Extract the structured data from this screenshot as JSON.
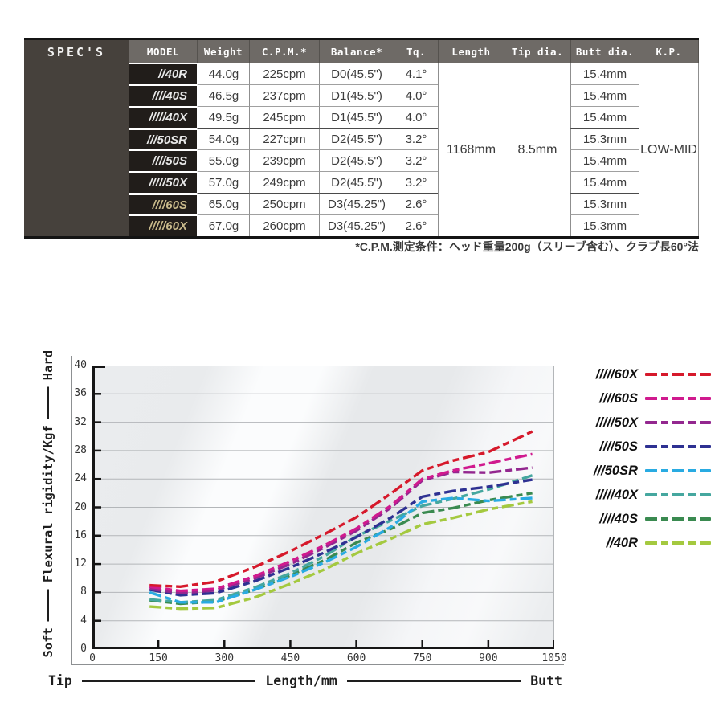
{
  "table": {
    "spec_label": "SPEC'S",
    "headers": [
      "MODEL",
      "Weight",
      "C.P.M.*",
      "Balance*",
      "Tq.",
      "Length",
      "Tip dia.",
      "Butt dia.",
      "K.P."
    ],
    "rows": [
      {
        "model": "//40R",
        "weight": "44.0g",
        "cpm": "225cpm",
        "balance": "D0(45.5\")",
        "tq": "4.1°",
        "butt": "15.4mm"
      },
      {
        "model": "////40S",
        "weight": "46.5g",
        "cpm": "237cpm",
        "balance": "D1(45.5\")",
        "tq": "4.0°",
        "butt": "15.4mm"
      },
      {
        "model": "/////40X",
        "weight": "49.5g",
        "cpm": "245cpm",
        "balance": "D1(45.5\")",
        "tq": "4.0°",
        "butt": "15.4mm"
      },
      {
        "model": "///50SR",
        "weight": "54.0g",
        "cpm": "227cpm",
        "balance": "D2(45.5\")",
        "tq": "3.2°",
        "butt": "15.3mm"
      },
      {
        "model": "////50S",
        "weight": "55.0g",
        "cpm": "239cpm",
        "balance": "D2(45.5\")",
        "tq": "3.2°",
        "butt": "15.4mm"
      },
      {
        "model": "/////50X",
        "weight": "57.0g",
        "cpm": "249cpm",
        "balance": "D2(45.5\")",
        "tq": "3.2°",
        "butt": "15.4mm"
      },
      {
        "model": "////60S",
        "weight": "65.0g",
        "cpm": "250cpm",
        "balance": "D3(45.25\")",
        "tq": "2.6°",
        "butt": "15.3mm"
      },
      {
        "model": "/////60X",
        "weight": "67.0g",
        "cpm": "260cpm",
        "balance": "D3(45.25\")",
        "tq": "2.6°",
        "butt": "15.3mm"
      }
    ],
    "merged": {
      "length": "1168mm",
      "tip_dia": "8.5mm",
      "kp": "LOW-MID"
    },
    "colors": {
      "header_bg": "#6e6a66",
      "spec_bg": "#46413c",
      "model_bg": "#211d1a",
      "gold_model_text": "#c9ba8b"
    }
  },
  "note": "*C.P.M.測定条件：ヘッド重量200g（スリーブ含む）、クラブ長60°法",
  "chart_data": {
    "type": "line",
    "line_style": "dashed",
    "xlabel": "Length/mm",
    "xlabel_left": "Tip",
    "xlabel_right": "Butt",
    "ylabel": "Flexural rigidity/Kgf",
    "ylabel_bottom": "Soft",
    "ylabel_top": "Hard",
    "xlim": [
      0,
      1050
    ],
    "ylim": [
      0,
      40
    ],
    "xticks": [
      0,
      150,
      300,
      450,
      600,
      750,
      900,
      1050
    ],
    "yticks": [
      0,
      4,
      8,
      12,
      16,
      20,
      24,
      28,
      32,
      36,
      40
    ],
    "grid": "horizontal",
    "legend_position": "right",
    "x": [
      130,
      200,
      280,
      370,
      450,
      530,
      600,
      680,
      750,
      820,
      900,
      1000
    ],
    "series": [
      {
        "name": "/////60X",
        "color": "#d6192b",
        "values": [
          9.0,
          8.8,
          9.5,
          11.6,
          13.8,
          16.3,
          18.6,
          22.0,
          25.2,
          26.6,
          27.8,
          30.7
        ]
      },
      {
        "name": "////60S",
        "color": "#d01a8e",
        "values": [
          8.8,
          8.2,
          8.5,
          10.3,
          12.4,
          14.7,
          17.0,
          20.3,
          24.0,
          25.2,
          26.2,
          27.5
        ]
      },
      {
        "name": "/////50X",
        "color": "#93278f",
        "values": [
          8.5,
          7.9,
          8.3,
          10.0,
          12.0,
          14.4,
          16.7,
          20.0,
          23.8,
          25.0,
          24.9,
          25.6
        ]
      },
      {
        "name": "////50S",
        "color": "#2e3192",
        "values": [
          8.4,
          7.6,
          7.9,
          9.6,
          11.5,
          13.7,
          15.8,
          18.6,
          21.5,
          22.3,
          22.9,
          23.9
        ]
      },
      {
        "name": "///50SR",
        "color": "#29abe2",
        "values": [
          8.0,
          6.6,
          6.6,
          8.4,
          10.2,
          12.3,
          14.4,
          17.3,
          20.8,
          21.3,
          20.9,
          21.3
        ]
      },
      {
        "name": "/////40X",
        "color": "#45a79f",
        "values": [
          7.0,
          6.6,
          6.9,
          8.7,
          10.7,
          13.2,
          15.9,
          18.2,
          20.2,
          21.2,
          22.5,
          24.5
        ]
      },
      {
        "name": "////40S",
        "color": "#3a8a50",
        "values": [
          6.9,
          6.4,
          6.7,
          8.4,
          10.4,
          12.6,
          15.0,
          17.0,
          19.2,
          19.9,
          21.0,
          22.0
        ]
      },
      {
        "name": "//40R",
        "color": "#a4c93f",
        "values": [
          6.0,
          5.7,
          5.8,
          7.3,
          9.2,
          11.3,
          13.5,
          15.6,
          17.6,
          18.5,
          19.7,
          20.8
        ]
      }
    ]
  }
}
